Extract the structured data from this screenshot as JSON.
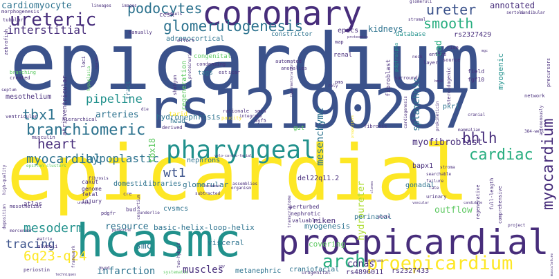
{
  "title": "Word cloud",
  "palette": {
    "dark_purple": "#440154",
    "purple": "#472d7b",
    "indigo": "#3b528b",
    "blue": "#2c728e",
    "teal": "#21918c",
    "green": "#28ae80",
    "lime": "#5ec962",
    "yellow_green": "#addc30",
    "yellow": "#fde725"
  },
  "words": [
    {
      "text": "epicardium",
      "weight": 100
    },
    {
      "text": "epicardial",
      "weight": 96
    },
    {
      "text": "rs12190287",
      "weight": 70
    },
    {
      "text": "hcasmc",
      "weight": 55
    },
    {
      "text": "proepicardial",
      "weight": 46
    },
    {
      "text": "coronary",
      "weight": 44
    },
    {
      "text": "pharyngeal",
      "weight": 34
    },
    {
      "text": "proepicardium",
      "weight": 28
    },
    {
      "text": "branchiomeric",
      "weight": 24
    },
    {
      "text": "myocardium",
      "weight": 24
    },
    {
      "text": "arch",
      "weight": 26
    },
    {
      "text": "cardiac",
      "weight": 22
    },
    {
      "text": "ureteric",
      "weight": 26
    },
    {
      "text": "glomerulogenesis",
      "weight": 22
    },
    {
      "text": "podocytes",
      "weight": 22
    },
    {
      "text": "heart",
      "weight": 20
    },
    {
      "text": "myocardial",
      "weight": 20
    },
    {
      "text": "smooth",
      "weight": 20
    },
    {
      "text": "ureter",
      "weight": 20
    },
    {
      "text": "bhlh",
      "weight": 20
    },
    {
      "text": "tbx1",
      "weight": 20
    },
    {
      "text": "6q23-q24",
      "weight": 18
    },
    {
      "text": "mesoderm",
      "weight": 18
    },
    {
      "text": "tracing",
      "weight": 18
    },
    {
      "text": "wt1",
      "weight": 18
    },
    {
      "text": "pipeline",
      "weight": 18
    },
    {
      "text": "hypoplastic",
      "weight": 16
    },
    {
      "text": "interstitial",
      "weight": 16
    },
    {
      "text": "cardiomyocyte",
      "weight": 16
    },
    {
      "text": "mesenchyme",
      "weight": 16
    },
    {
      "text": "hydroureter",
      "weight": 14
    },
    {
      "text": "infarction",
      "weight": 14
    },
    {
      "text": "cdnas",
      "weight": 14
    },
    {
      "text": "muscles",
      "weight": 14
    },
    {
      "text": "myofibroblast",
      "weight": 14
    },
    {
      "text": "resource",
      "weight": 14
    },
    {
      "text": "outflow",
      "weight": 14
    },
    {
      "text": "smc",
      "weight": 14
    },
    {
      "text": "splanchnic",
      "weight": 13
    },
    {
      "text": "kidneys",
      "weight": 13
    },
    {
      "text": "annotated",
      "weight": 13
    },
    {
      "text": "arteries",
      "weight": 13
    },
    {
      "text": "tbx18",
      "weight": 13
    },
    {
      "text": "cad",
      "weight": 13
    },
    {
      "text": "basic-helix-loop-helix",
      "weight": 12
    },
    {
      "text": "myogenesis",
      "weight": 12
    },
    {
      "text": "hydronephrosis",
      "weight": 12
    },
    {
      "text": "mesothelium",
      "weight": 11
    },
    {
      "text": "glomerular",
      "weight": 11
    },
    {
      "text": "perinatal",
      "weight": 11
    },
    {
      "text": "regeneration",
      "weight": 11
    },
    {
      "text": "adrenocortical",
      "weight": 10
    },
    {
      "text": "visceral",
      "weight": 11
    },
    {
      "text": "covering",
      "weight": 11
    },
    {
      "text": "riken",
      "weight": 11
    },
    {
      "text": "myogenic",
      "weight": 11
    },
    {
      "text": "metanephric",
      "weight": 10
    },
    {
      "text": "craniofacial",
      "weight": 10
    },
    {
      "text": "rs4896011",
      "weight": 10
    },
    {
      "text": "rs2327433",
      "weight": 10
    },
    {
      "text": "rs2327429",
      "weight": 10
    },
    {
      "text": "epdcs",
      "weight": 10
    },
    {
      "text": "del22q11.2",
      "weight": 10
    },
    {
      "text": "nephrons",
      "weight": 10
    },
    {
      "text": "libraries",
      "weight": 10
    },
    {
      "text": "domestic",
      "weight": 10
    },
    {
      "text": "cvsmcs",
      "weight": 10
    },
    {
      "text": "gonadal",
      "weight": 10
    },
    {
      "text": "bapx1",
      "weight": 10
    },
    {
      "text": "pkr1",
      "weight": 10
    },
    {
      "text": "constrictor",
      "weight": 9
    },
    {
      "text": "database",
      "weight": 9
    },
    {
      "text": "ccsk",
      "weight": 9
    },
    {
      "text": "renal",
      "weight": 9
    },
    {
      "text": "congenital",
      "weight": 9
    },
    {
      "text": "tract",
      "weight": 9
    },
    {
      "text": "tags",
      "weight": 9
    },
    {
      "text": "gut",
      "weight": 9
    },
    {
      "text": "atlas",
      "weight": 9
    },
    {
      "text": "tarid",
      "weight": 9
    },
    {
      "text": "head",
      "weight": 9
    },
    {
      "text": "atrioventricular",
      "weight": 9
    },
    {
      "text": "fetal",
      "weight": 8
    },
    {
      "text": "genome",
      "weight": 8
    },
    {
      "text": "injury",
      "weight": 8
    },
    {
      "text": "cakut",
      "weight": 8
    },
    {
      "text": "perturbed",
      "weight": 8
    },
    {
      "text": "nephrotic",
      "weight": 8
    },
    {
      "text": "valuable",
      "weight": 8
    },
    {
      "text": "fibroblast",
      "weight": 8
    },
    {
      "text": "pdgfralpha",
      "weight": 7
    },
    {
      "text": "field",
      "weight": 8
    },
    {
      "text": "fgf10",
      "weight": 8
    },
    {
      "text": "surround",
      "weight": 7
    },
    {
      "text": "layer",
      "weight": 7
    },
    {
      "text": "source",
      "weight": 7
    },
    {
      "text": "rise",
      "weight": 7
    },
    {
      "text": "entire",
      "weight": 7
    },
    {
      "text": "automated",
      "weight": 7
    },
    {
      "text": "smcs",
      "weight": 7
    },
    {
      "text": "myf5",
      "weight": 7
    },
    {
      "text": "pms",
      "weight": 7
    },
    {
      "text": "fibrotic",
      "weight": 7
    },
    {
      "text": "bud",
      "weight": 8
    },
    {
      "text": "pdgfr",
      "weight": 7
    },
    {
      "text": "cre",
      "weight": 7
    },
    {
      "text": "myod",
      "weight": 6
    },
    {
      "text": "musculin",
      "weight": 7
    },
    {
      "text": "ventricular",
      "weight": 7
    },
    {
      "text": "hierarchical",
      "weight": 7
    },
    {
      "text": "loci",
      "weight": 7
    },
    {
      "text": "shotgun",
      "weight": 7
    },
    {
      "text": "die",
      "weight": 6
    },
    {
      "text": "derived",
      "weight": 7
    },
    {
      "text": "rationale",
      "weight": 7
    },
    {
      "text": "paucity",
      "weight": 7
    },
    {
      "text": "integrate",
      "weight": 6
    },
    {
      "text": "condensing",
      "weight": 7
    },
    {
      "text": "anomalies",
      "weight": 7
    },
    {
      "text": "proteinuria",
      "weight": 6
    },
    {
      "text": "est",
      "weight": 7
    },
    {
      "text": "scar",
      "weight": 7
    },
    {
      "text": "effort",
      "weight": 7
    },
    {
      "text": "map",
      "weight": 7
    },
    {
      "text": "manually",
      "weight": 7
    },
    {
      "text": "images",
      "weight": 6
    },
    {
      "text": "lineages",
      "weight": 6
    },
    {
      "text": "vessels",
      "weight": 6
    },
    {
      "text": "glomeruli",
      "weight": 6
    },
    {
      "text": "stromal",
      "weight": 6
    },
    {
      "text": "sertoli",
      "weight": 6
    },
    {
      "text": "mandibular",
      "weight": 6
    },
    {
      "text": "morphogenesis",
      "weight": 7
    },
    {
      "text": "tubular",
      "weight": 7
    },
    {
      "text": "zebrafish",
      "weight": 7
    },
    {
      "text": "septum",
      "weight": 6
    },
    {
      "text": "branching",
      "weight": 7
    },
    {
      "text": "created",
      "weight": 7
    },
    {
      "text": "hypoplasia",
      "weight": 6
    },
    {
      "text": "spared",
      "weight": 5
    },
    {
      "text": "hypermethylation",
      "weight": 5
    },
    {
      "text": "steroidogenic",
      "weight": 7
    },
    {
      "text": "precursors",
      "weight": 7
    },
    {
      "text": "network",
      "weight": 7
    },
    {
      "text": "mgc",
      "weight": 5
    },
    {
      "text": "neck",
      "weight": 6
    },
    {
      "text": "bmp4",
      "weight": 5
    },
    {
      "text": "rely",
      "weight": 6
    },
    {
      "text": "prokineticin",
      "weight": 6
    },
    {
      "text": "cardiogenesis",
      "weight": 6
    },
    {
      "text": "progenitors",
      "weight": 5
    },
    {
      "text": "cranial",
      "weight": 6
    },
    {
      "text": "384-well",
      "weight": 6
    },
    {
      "text": "autonomously",
      "weight": 6
    },
    {
      "text": "mammalian",
      "weight": 6
    },
    {
      "text": "stroma",
      "weight": 6
    },
    {
      "text": "searchable",
      "weight": 6
    },
    {
      "text": "failure",
      "weight": 6
    },
    {
      "text": "fate",
      "weight": 6
    },
    {
      "text": "urinary",
      "weight": 7
    },
    {
      "text": "full-length",
      "weight": 7
    },
    {
      "text": "comprehensive",
      "weight": 7
    },
    {
      "text": "candidate",
      "weight": 5
    },
    {
      "text": "project",
      "weight": 6
    },
    {
      "text": "regenerative",
      "weight": 7
    },
    {
      "text": "postn",
      "weight": 6
    },
    {
      "text": "clones",
      "weight": 5
    },
    {
      "text": "transcriptome",
      "weight": 6
    },
    {
      "text": "organism",
      "weight": 6
    },
    {
      "text": "resident",
      "weight": 5
    },
    {
      "text": "subtracted",
      "weight": 6
    },
    {
      "text": "consortium",
      "weight": 6
    },
    {
      "text": "assemblies",
      "weight": 6
    },
    {
      "text": "velo-cardio-facial",
      "weight": 5
    },
    {
      "text": "fibrosis",
      "weight": 6
    },
    {
      "text": "epsilon clusters",
      "weight": 6
    },
    {
      "text": "high-quality",
      "weight": 6
    },
    {
      "text": "deposition",
      "weight": 6
    },
    {
      "text": "unique",
      "weight": 5
    },
    {
      "text": "mesothelial",
      "weight": 7
    },
    {
      "text": "merceneer",
      "weight": 6
    },
    {
      "text": "matrix",
      "weight": 6
    },
    {
      "text": "alveoli",
      "weight": 7
    },
    {
      "text": "periostin",
      "weight": 7
    },
    {
      "text": "techniques",
      "weight": 5
    },
    {
      "text": "framework",
      "weight": 6
    },
    {
      "text": "paracrine",
      "weight": 5
    },
    {
      "text": "two-hybrid",
      "weight": 6
    },
    {
      "text": "systematic",
      "weight": 6
    },
    {
      "text": "urogenital",
      "weight": 7
    },
    {
      "text": "underlie",
      "weight": 6
    },
    {
      "text": "programs",
      "weight": 5
    },
    {
      "text": "spy",
      "weight": 5
    },
    {
      "text": "proteomics",
      "weight": 5
    },
    {
      "text": "vascular",
      "weight": 5
    },
    {
      "text": "musculature",
      "weight": 5
    }
  ]
}
